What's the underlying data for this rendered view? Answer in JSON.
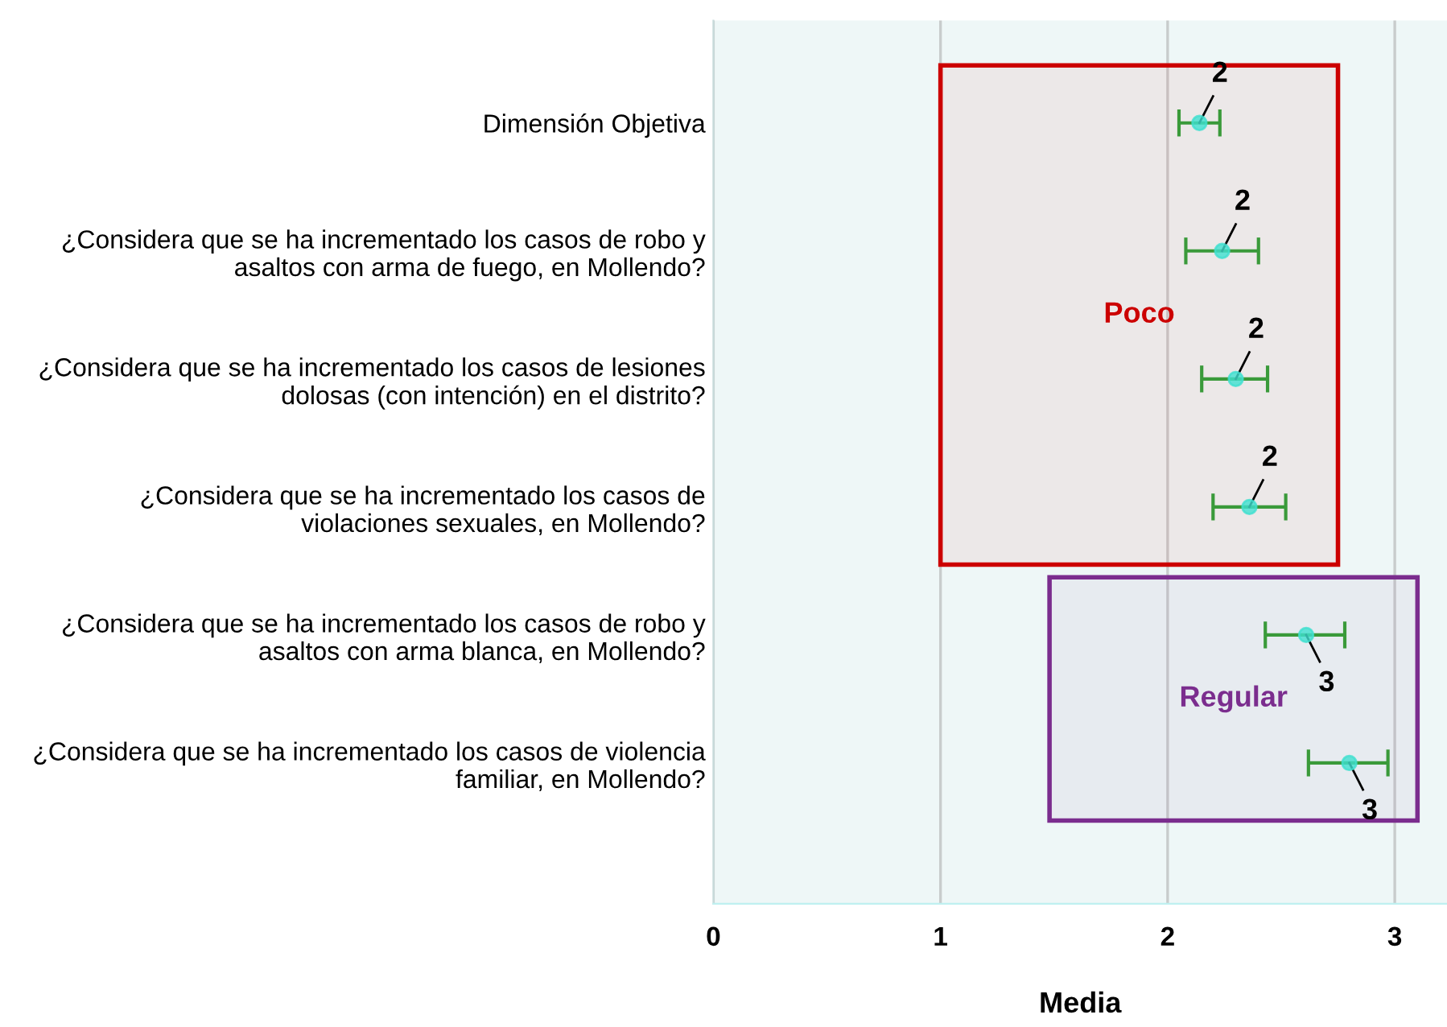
{
  "chart_data": {
    "type": "scatter",
    "orientation": "horizontal",
    "xlabel": "Media",
    "categories": [
      "Dimensión Objetiva",
      "¿Considera que se ha incrementado los casos de robo y\nasaltos con arma de fuego, en Mollendo?",
      "¿Considera que se ha incrementado los casos de lesiones\ndolosas (con intención) en el distrito?",
      "¿Considera que se ha incrementado los casos de\nviolaciones sexuales, en Mollendo?",
      "¿Considera que se ha incrementado los casos de robo y\nasaltos con arma blanca, en Mollendo?",
      "¿Considera que se ha incrementado los casos de violencia\nfamiliar, en Mollendo?"
    ],
    "series": [
      {
        "color": "#40e0d0",
        "values": [
          2.14,
          2.24,
          2.3,
          2.36,
          2.61,
          2.8
        ],
        "errors": [
          [
            2.05,
            2.23
          ],
          [
            2.08,
            2.4
          ],
          [
            2.15,
            2.44
          ],
          [
            2.2,
            2.52
          ],
          [
            2.43,
            2.78
          ],
          [
            2.62,
            2.97
          ]
        ],
        "value_labels": [
          "2",
          "2",
          "2",
          "2",
          "3",
          "3"
        ]
      }
    ],
    "xlim": [
      0,
      3.23
    ],
    "xticks": [
      0,
      1,
      2,
      3
    ],
    "grid": "x",
    "marker": "circle",
    "bands": [
      {
        "axis": "x",
        "from": 1.0,
        "to": 2.75,
        "label": "Poco",
        "color": "#cc0000"
      },
      {
        "axis": "x",
        "from": 1.48,
        "to": 3.1,
        "label": "Regular",
        "color": "#7b2d8e"
      }
    ]
  }
}
